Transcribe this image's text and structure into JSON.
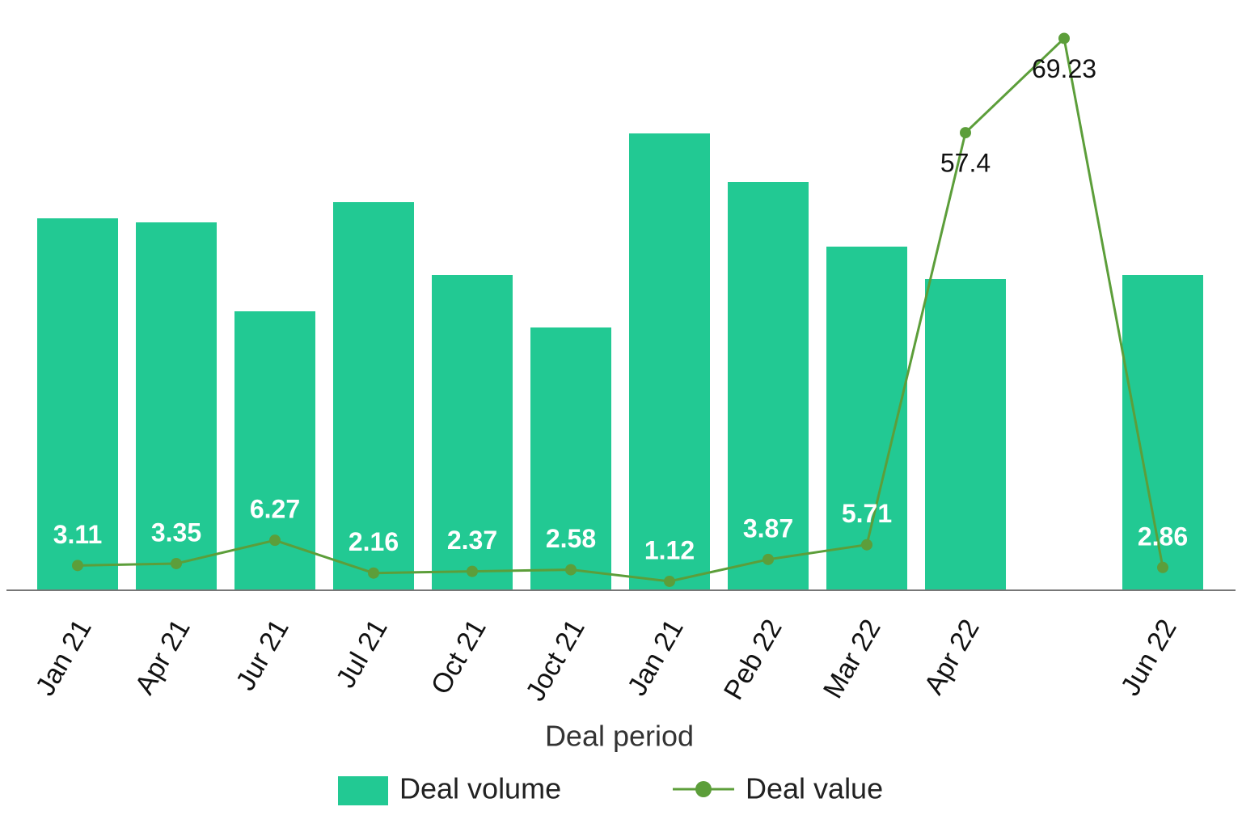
{
  "chart_data": {
    "type": "bar",
    "x_label": "Deal period",
    "categories": [
      "Jan 21",
      "Apr 21",
      "Jur 21",
      "Jul 21",
      "Oct 21",
      "Joct 21",
      "Jan 21",
      "Peb 22",
      "Mar 22",
      "Apr 22",
      null,
      "Jun 22"
    ],
    "series": [
      {
        "name": "Deal volume",
        "type": "bar",
        "color": "#22c993",
        "values": [
          92,
          91,
          69,
          96,
          78,
          65,
          113,
          101,
          85,
          77,
          null,
          78
        ]
      },
      {
        "name": "Deal value",
        "type": "line",
        "axis": "y2",
        "color": "#5c9e3a",
        "values": [
          3.11,
          3.35,
          6.27,
          2.16,
          2.37,
          2.58,
          1.12,
          3.87,
          5.71,
          57.4,
          69.23,
          2.86
        ]
      }
    ],
    "ylim": [
      0,
      140
    ],
    "y2lim": [
      0,
      71
    ]
  }
}
